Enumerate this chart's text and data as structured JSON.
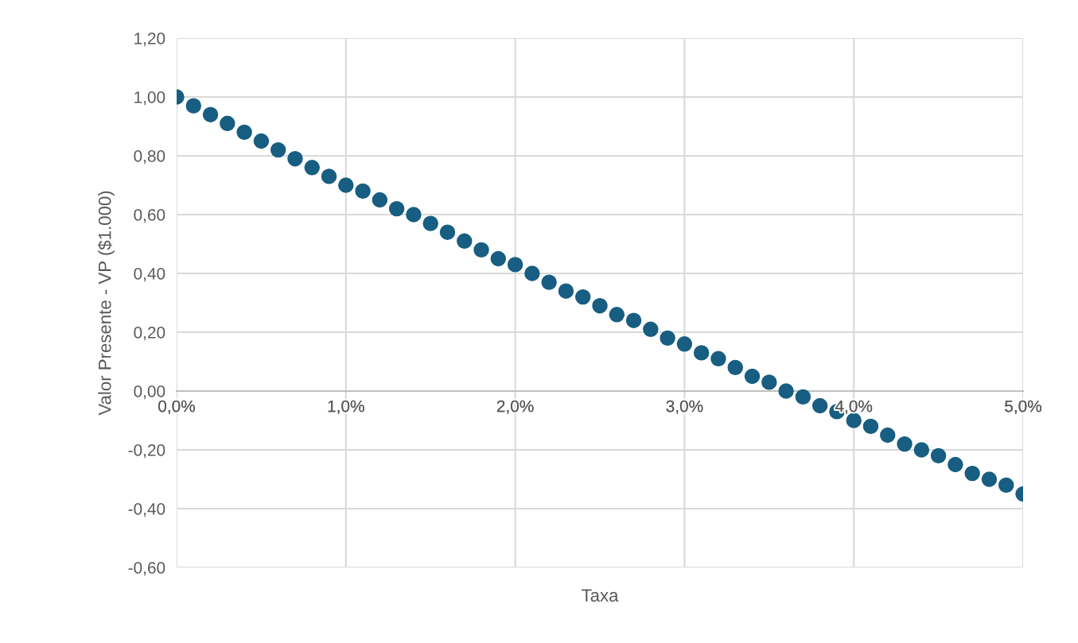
{
  "chart_data": {
    "type": "scatter",
    "xlabel": "Taxa",
    "ylabel": "Valor Presente - VP ($1.000)",
    "x": [
      0,
      0.1,
      0.2,
      0.3,
      0.4,
      0.5,
      0.6,
      0.7,
      0.8,
      0.9,
      1.0,
      1.1,
      1.2,
      1.3,
      1.4,
      1.5,
      1.6,
      1.7,
      1.8,
      1.9,
      2.0,
      2.1,
      2.2,
      2.3,
      2.4,
      2.5,
      2.6,
      2.7,
      2.8,
      2.9,
      3.0,
      3.1,
      3.2,
      3.3,
      3.4,
      3.5,
      3.6,
      3.7,
      3.8,
      3.9,
      4.0,
      4.1,
      4.2,
      4.3,
      4.4,
      4.5,
      4.6,
      4.7,
      4.8,
      4.9,
      5.0
    ],
    "series": [
      {
        "color": "#175e82",
        "values": [
          1.0,
          0.97,
          0.94,
          0.91,
          0.88,
          0.85,
          0.82,
          0.79,
          0.76,
          0.73,
          0.7,
          0.68,
          0.65,
          0.62,
          0.6,
          0.57,
          0.54,
          0.51,
          0.48,
          0.45,
          0.43,
          0.4,
          0.37,
          0.34,
          0.32,
          0.29,
          0.26,
          0.24,
          0.21,
          0.18,
          0.16,
          0.13,
          0.11,
          0.08,
          0.05,
          0.03,
          0.0,
          -0.02,
          -0.05,
          -0.07,
          -0.1,
          -0.12,
          -0.15,
          -0.18,
          -0.2,
          -0.22,
          -0.25,
          -0.28,
          -0.3,
          -0.32,
          -0.35
        ]
      }
    ],
    "xlim": [
      0,
      5
    ],
    "xticks": [
      {
        "value": 0,
        "label": "0,0%"
      },
      {
        "value": 1,
        "label": "1,0%"
      },
      {
        "value": 2,
        "label": "2,0%"
      },
      {
        "value": 3,
        "label": "3,0%"
      },
      {
        "value": 4,
        "label": "4,0%"
      },
      {
        "value": 5,
        "label": "5,0%"
      }
    ],
    "ylim": [
      -0.6,
      1.2
    ],
    "yticks": [
      {
        "value": -0.6,
        "label": "-0,60"
      },
      {
        "value": -0.4,
        "label": "-0,40"
      },
      {
        "value": -0.2,
        "label": "-0,20"
      },
      {
        "value": 0,
        "label": "0,00"
      },
      {
        "value": 0.2,
        "label": "0,20"
      },
      {
        "value": 0.4,
        "label": "0,40"
      },
      {
        "value": 0.6,
        "label": "0,60"
      },
      {
        "value": 0.8,
        "label": "0,80"
      },
      {
        "value": 1.0,
        "label": "1,00"
      },
      {
        "value": 1.2,
        "label": "1,20"
      }
    ],
    "grid": true,
    "marker": "circle",
    "legend": false
  }
}
